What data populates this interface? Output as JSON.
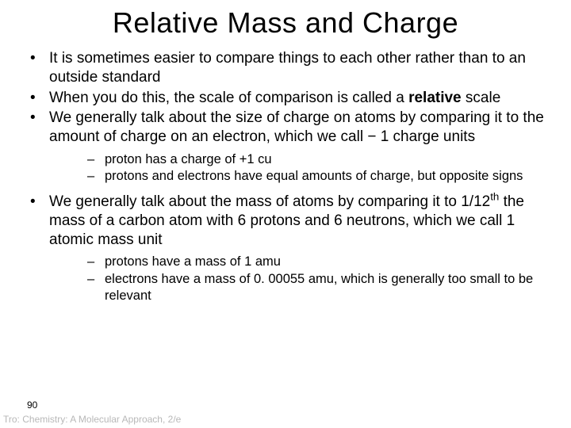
{
  "title": "Relative Mass and Charge",
  "bullets": [
    {
      "text": "It is sometimes easier to compare things to each other rather than to an outside standard",
      "sub": []
    },
    {
      "prefix": "When you do this, the scale of comparison is called a ",
      "bold": "relative",
      "suffix": " scale",
      "sub": []
    },
    {
      "text": "We generally talk about the size of charge on atoms by comparing it to the amount of charge on an electron, which we call − 1 charge units",
      "sub": [
        "proton has a charge of +1 cu",
        "protons and electrons have equal amounts of charge, but opposite signs"
      ]
    },
    {
      "prefix2": "We generally talk about the mass of atoms by comparing it to 1/12",
      "sup": "th",
      "suffix2": " the mass of a carbon atom with 6 protons and 6 neutrons, which we call 1 atomic mass unit",
      "sub": [
        "protons have a mass of 1 amu",
        "electrons have a mass of 0. 00055 amu, which is generally too small to be relevant"
      ]
    }
  ],
  "pagenum": "90",
  "footer": "Tro: Chemistry: A Molecular Approach, 2/e",
  "colors": {
    "background": "#ffffff",
    "text": "#000000",
    "footer": "#b8b8b8"
  },
  "typography": {
    "title_fontsize": 36,
    "body_fontsize": 19,
    "sub_fontsize": 16.5,
    "footer_fontsize": 12,
    "font_family": "Arial"
  }
}
